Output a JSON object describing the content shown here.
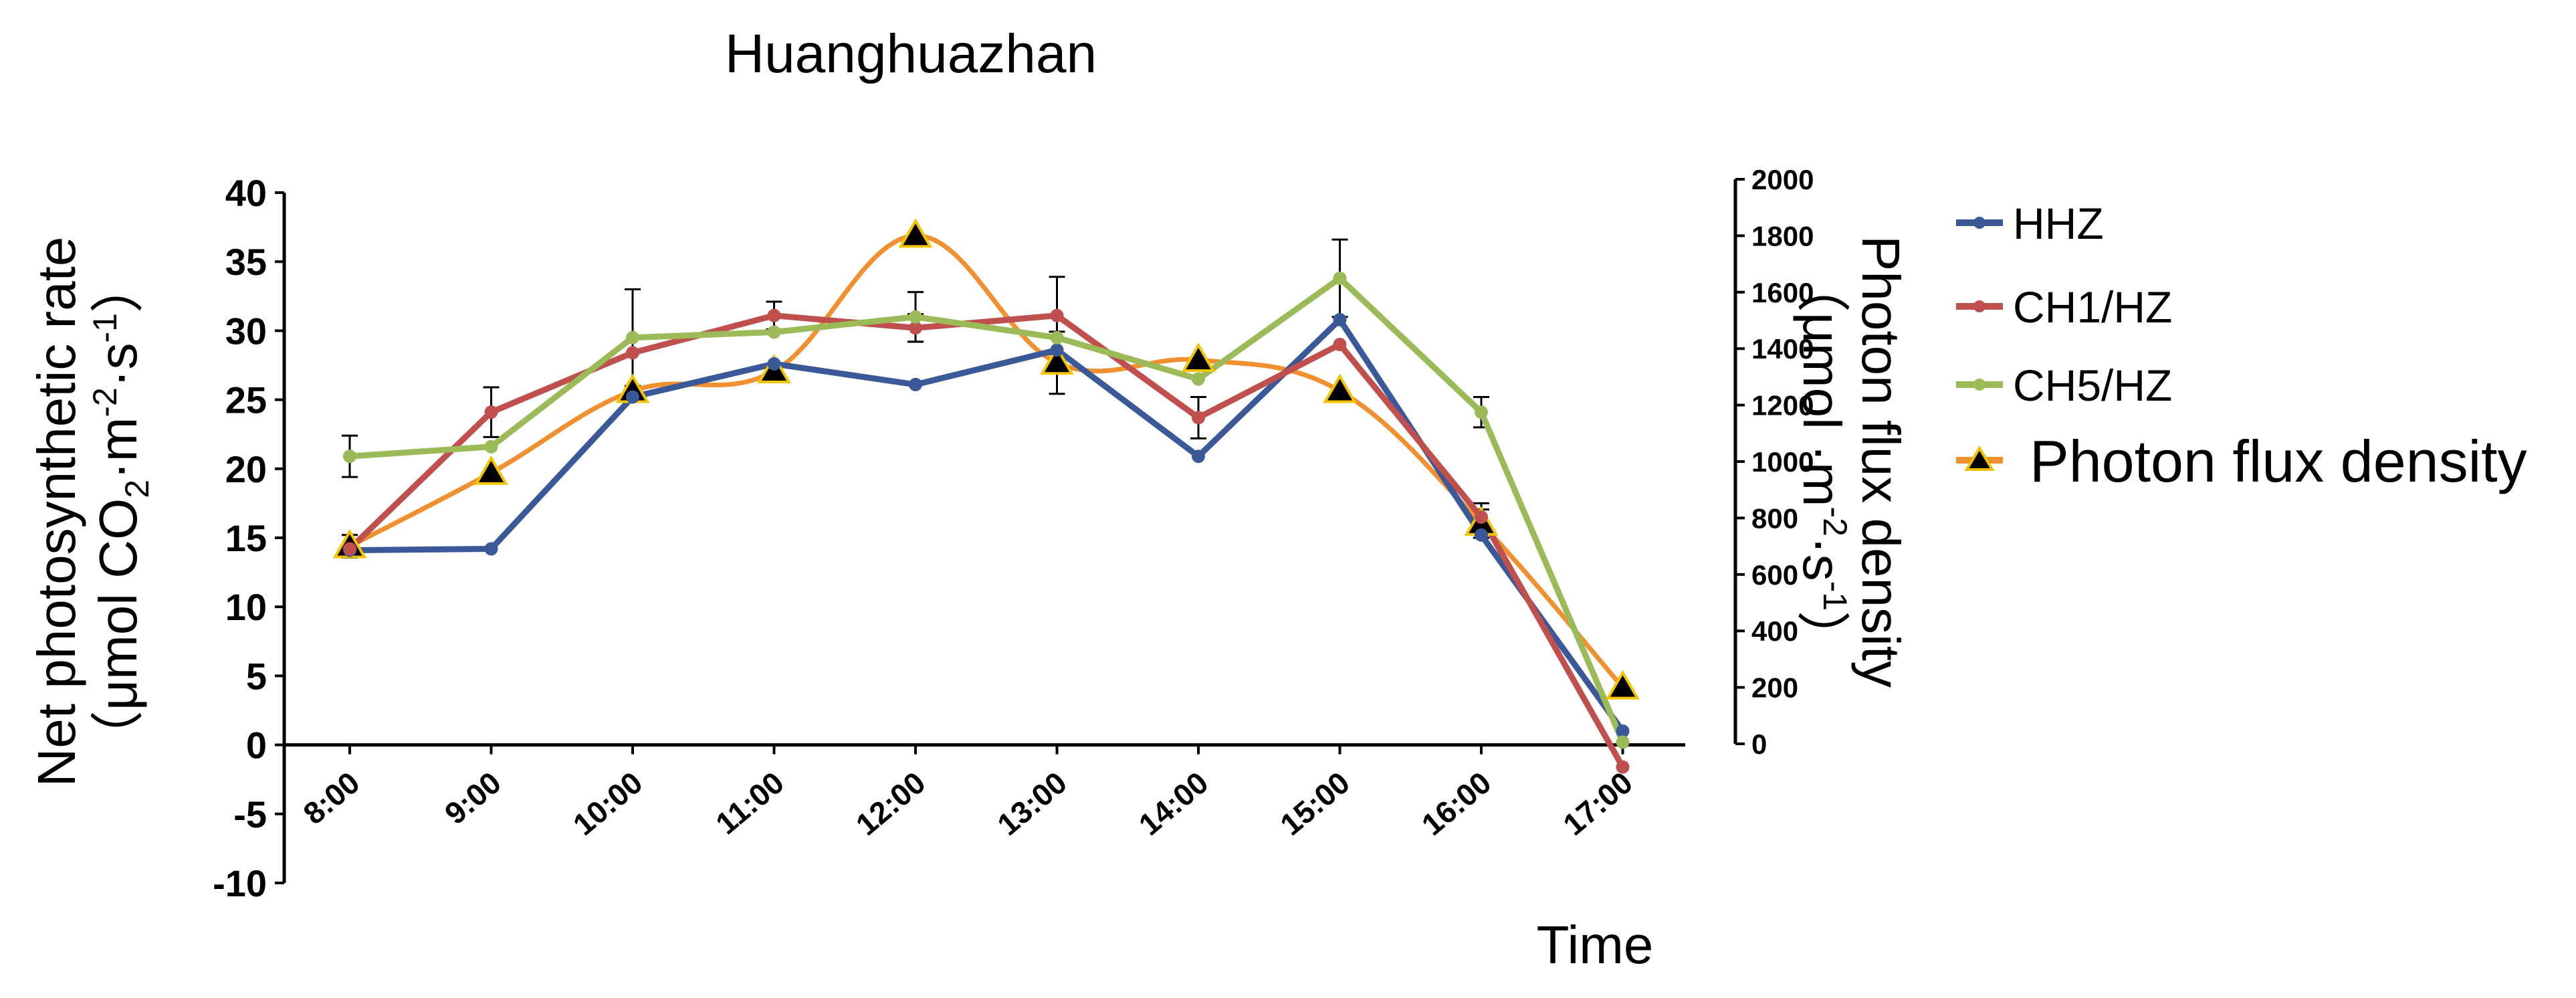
{
  "chart_data": {
    "type": "line",
    "title": "Huanghuazhan",
    "xlabel": "Time",
    "ylabel_left": "Net photosynthetic rate",
    "ylabel_left_units": [
      "（μmol CO",
      "2",
      "·m",
      "-2",
      "·s",
      "-1",
      "）"
    ],
    "ylabel_right": "Photon flux density",
    "ylabel_right_units": [
      "（μmol ·m",
      "-2",
      "·s",
      "-1",
      "）"
    ],
    "categories": [
      "8:00",
      "9:00",
      "10:00",
      "11:00",
      "12:00",
      "13:00",
      "14:00",
      "15:00",
      "16:00",
      "17:00"
    ],
    "ylim_left": [
      -10,
      40
    ],
    "yticks_left": [
      -10,
      -5,
      0,
      5,
      10,
      15,
      20,
      25,
      30,
      35,
      40
    ],
    "ylim_right": [
      0,
      2000
    ],
    "yticks_right": [
      0,
      200,
      400,
      600,
      800,
      1000,
      1200,
      1400,
      1600,
      1800,
      2000
    ],
    "grid": false,
    "legend_position": "right",
    "series": [
      {
        "name": "HHZ",
        "axis": "left",
        "color": "#3b5998",
        "marker": "circle",
        "values": [
          14.1,
          14.2,
          25.2,
          27.6,
          26.1,
          28.6,
          20.9,
          30.8,
          15.2,
          1.0
        ]
      },
      {
        "name": "CH1/HZ",
        "axis": "left",
        "color": "#c0504d",
        "marker": "circle",
        "values": [
          14.2,
          24.1,
          28.4,
          31.1,
          30.2,
          31.1,
          23.7,
          29.0,
          16.5,
          -1.6
        ],
        "errors": [
          0,
          1.8,
          0,
          1.0,
          1.0,
          2.8,
          1.5,
          0,
          1.0,
          0
        ]
      },
      {
        "name": "CH5/HZ",
        "axis": "left",
        "color": "#9bbb59",
        "marker": "circle",
        "values": [
          20.9,
          21.6,
          29.5,
          29.9,
          31.0,
          29.5,
          26.5,
          33.8,
          24.1,
          0.2
        ],
        "errors": [
          1.5,
          0,
          3.5,
          0,
          1.8,
          0,
          0,
          2.8,
          1.1,
          0
        ]
      },
      {
        "name": "Photon flux density",
        "axis": "right",
        "color": "#f0902f",
        "marker": "triangle",
        "values": [
          700,
          960,
          1250,
          1320,
          1800,
          1350,
          1360,
          1250,
          780,
          200
        ],
        "errors": [
          40,
          0,
          0,
          0,
          0,
          110,
          0,
          0,
          50,
          0
        ]
      }
    ]
  }
}
